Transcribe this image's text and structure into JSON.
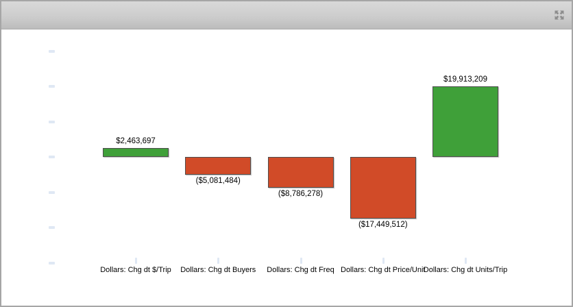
{
  "header": {
    "icons": [
      {
        "name": "expand-icon",
        "glyph": "four-arrows-outward",
        "color": "#8d8d8d"
      }
    ]
  },
  "chart_data": {
    "type": "bar",
    "subtype": "contribution-waterfall-style-zero-baseline",
    "title": "",
    "xlabel": "",
    "ylabel": "",
    "categories": [
      "Dollars: Chg dt $/Trip",
      "Dollars: Chg dt Buyers",
      "Dollars: Chg dt Freq",
      "Dollars: Chg dt Price/Unit",
      "Dollars: Chg dt Units/Trip"
    ],
    "values": [
      2463697,
      -5081484,
      -8786278,
      -17449512,
      19913209
    ],
    "data_labels": [
      "$2,463,697",
      "($5,081,484)",
      "($8,786,278)",
      "($17,449,512)",
      "$19,913,209"
    ],
    "positive_color": "#3fa039",
    "negative_color": "#d14b28",
    "bar_border_color": "#4d4d4d",
    "label_color": "#000000",
    "ylim": [
      -30000000,
      30000000
    ],
    "y_tick_interval": 10000000,
    "y_tick_labels_visible": false,
    "axis_tick_color": "#dfe8f4",
    "grid": false,
    "legend": "none"
  }
}
